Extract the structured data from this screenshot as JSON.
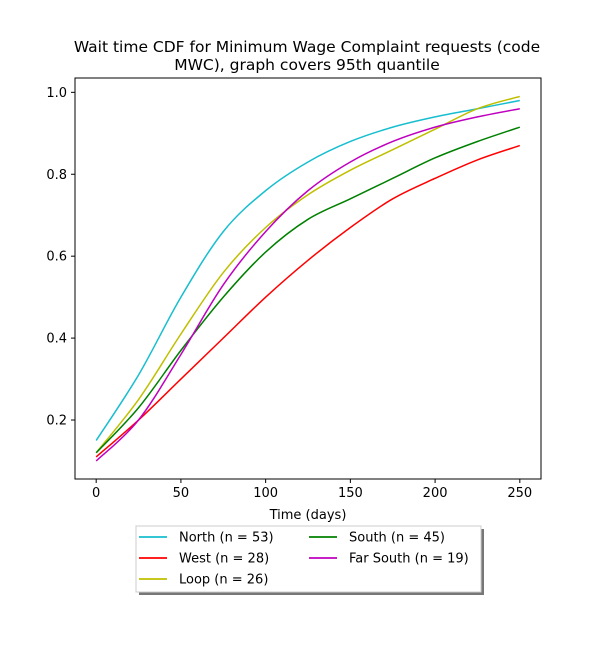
{
  "chart_data": {
    "type": "line",
    "title": "Wait time CDF for Minimum Wage Complaint  requests (code",
    "title_line2": "MWC), graph covers 95th quantile",
    "xlabel": "Time (days)",
    "ylabel": "",
    "xlim": [
      -12.5,
      262.5
    ],
    "ylim": [
      0.056,
      1.035
    ],
    "xticks": [
      0,
      50,
      100,
      150,
      200,
      250
    ],
    "yticks": [
      0.2,
      0.4,
      0.6,
      0.8,
      1.0
    ],
    "xtick_labels": [
      "0",
      "50",
      "100",
      "150",
      "200",
      "250"
    ],
    "ytick_labels": [
      "0.2",
      "0.4",
      "0.6",
      "0.8",
      "1.0"
    ],
    "grid": false,
    "legend_placement": "below plot, center",
    "series": [
      {
        "name": "North (n = 53)",
        "color": "#17becf",
        "x": [
          0,
          25,
          50,
          75,
          100,
          125,
          150,
          175,
          200,
          225,
          250
        ],
        "y": [
          0.15,
          0.31,
          0.5,
          0.66,
          0.76,
          0.83,
          0.88,
          0.915,
          0.94,
          0.96,
          0.98
        ]
      },
      {
        "name": "West (n = 28)",
        "color": "#ff0000",
        "x": [
          0,
          25,
          50,
          75,
          100,
          125,
          150,
          175,
          200,
          225,
          250
        ],
        "y": [
          0.11,
          0.2,
          0.3,
          0.4,
          0.5,
          0.59,
          0.67,
          0.74,
          0.79,
          0.835,
          0.87
        ]
      },
      {
        "name": "Loop (n = 26)",
        "color": "#bfbf00",
        "x": [
          0,
          25,
          50,
          75,
          100,
          125,
          150,
          175,
          200,
          225,
          250
        ],
        "y": [
          0.12,
          0.25,
          0.41,
          0.56,
          0.67,
          0.75,
          0.81,
          0.86,
          0.91,
          0.96,
          0.99
        ]
      },
      {
        "name": "South (n = 45)",
        "color": "#008000",
        "x": [
          0,
          25,
          50,
          75,
          100,
          125,
          150,
          175,
          200,
          225,
          250
        ],
        "y": [
          0.12,
          0.23,
          0.37,
          0.5,
          0.61,
          0.69,
          0.74,
          0.79,
          0.84,
          0.88,
          0.915
        ]
      },
      {
        "name": "South (n = 45)",
        "color": "#008000",
        "x": [],
        "y": [],
        "hidden": true
      },
      {
        "name": "Far South (n = 19)",
        "color": "#bf00bf",
        "x": [
          0,
          25,
          50,
          75,
          100,
          125,
          150,
          175,
          200,
          225,
          250
        ],
        "y": [
          0.1,
          0.2,
          0.36,
          0.53,
          0.66,
          0.76,
          0.83,
          0.88,
          0.915,
          0.94,
          0.96
        ]
      }
    ]
  }
}
